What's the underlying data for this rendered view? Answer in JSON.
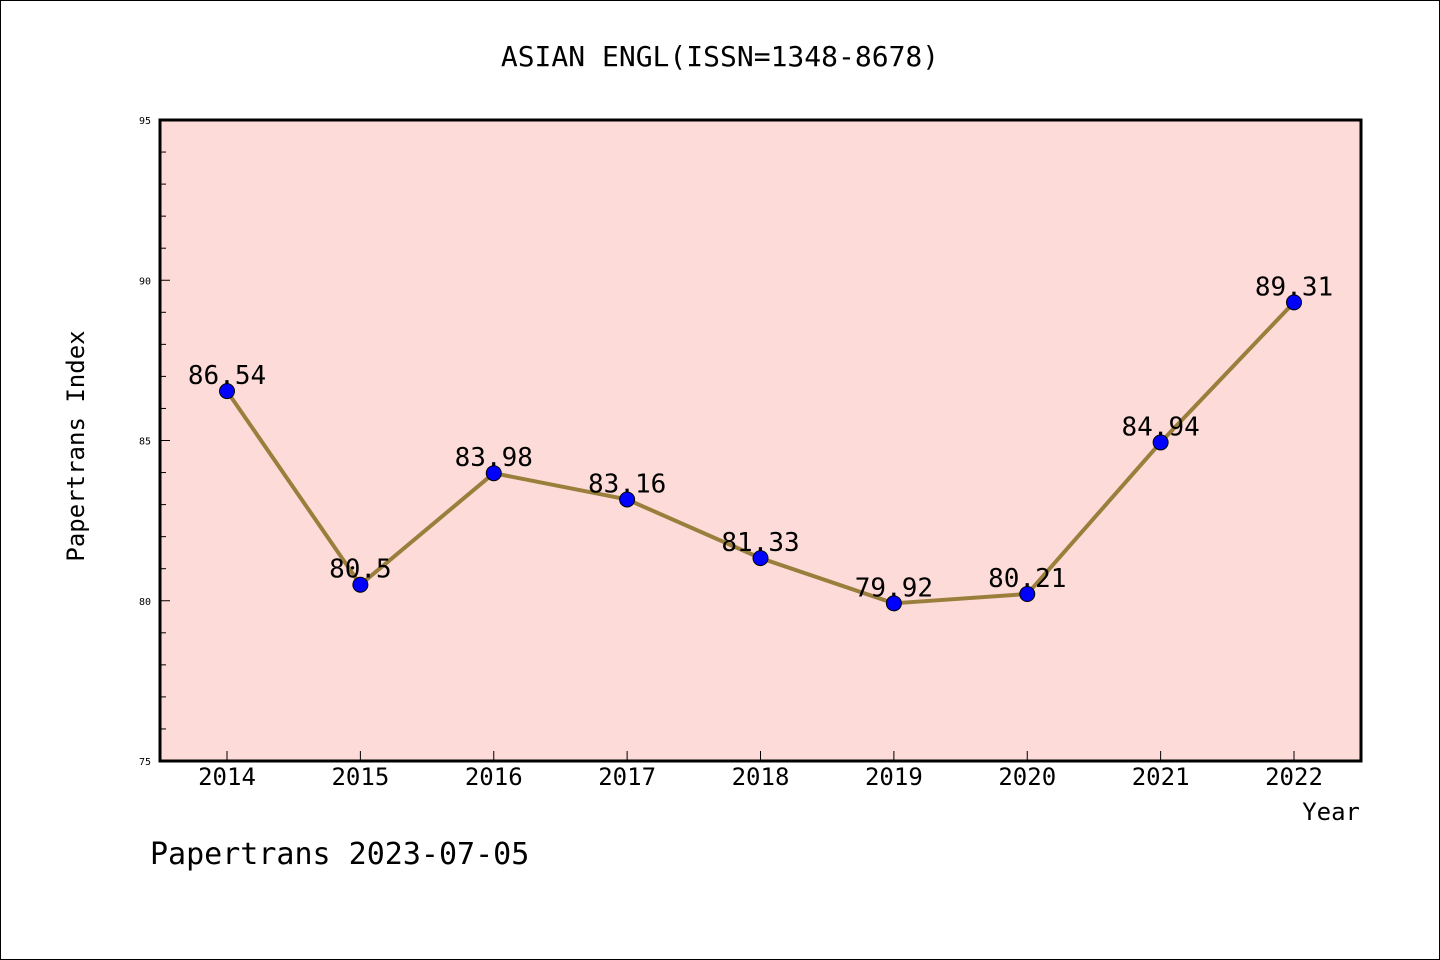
{
  "chart_data": {
    "type": "line",
    "title": "ASIAN ENGL(ISSN=1348-8678)",
    "xlabel": "Year",
    "ylabel": "Papertrans Index",
    "categories": [
      "2014",
      "2015",
      "2016",
      "2017",
      "2018",
      "2019",
      "2020",
      "2021",
      "2022"
    ],
    "series": [
      {
        "values": [
          86.54,
          80.5,
          83.98,
          83.16,
          81.33,
          79.92,
          80.21,
          84.94,
          89.31
        ],
        "data_labels": [
          "86.54",
          "80.5",
          "83.98",
          "83.16",
          "81.33",
          "79.92",
          "80.21",
          "84.94",
          "89.31"
        ]
      }
    ],
    "ylim": [
      75,
      95
    ],
    "y_ticks": [
      75,
      80,
      85,
      90,
      95
    ],
    "y_tick_labels": [
      "75",
      "80",
      "85",
      "90",
      "95"
    ],
    "grid": false,
    "colors": {
      "plot_background": "#fddbd8",
      "line": "#9a7f3c",
      "marker": "#0000ff"
    }
  },
  "footer": {
    "watermark": "Papertrans 2023-07-05"
  }
}
